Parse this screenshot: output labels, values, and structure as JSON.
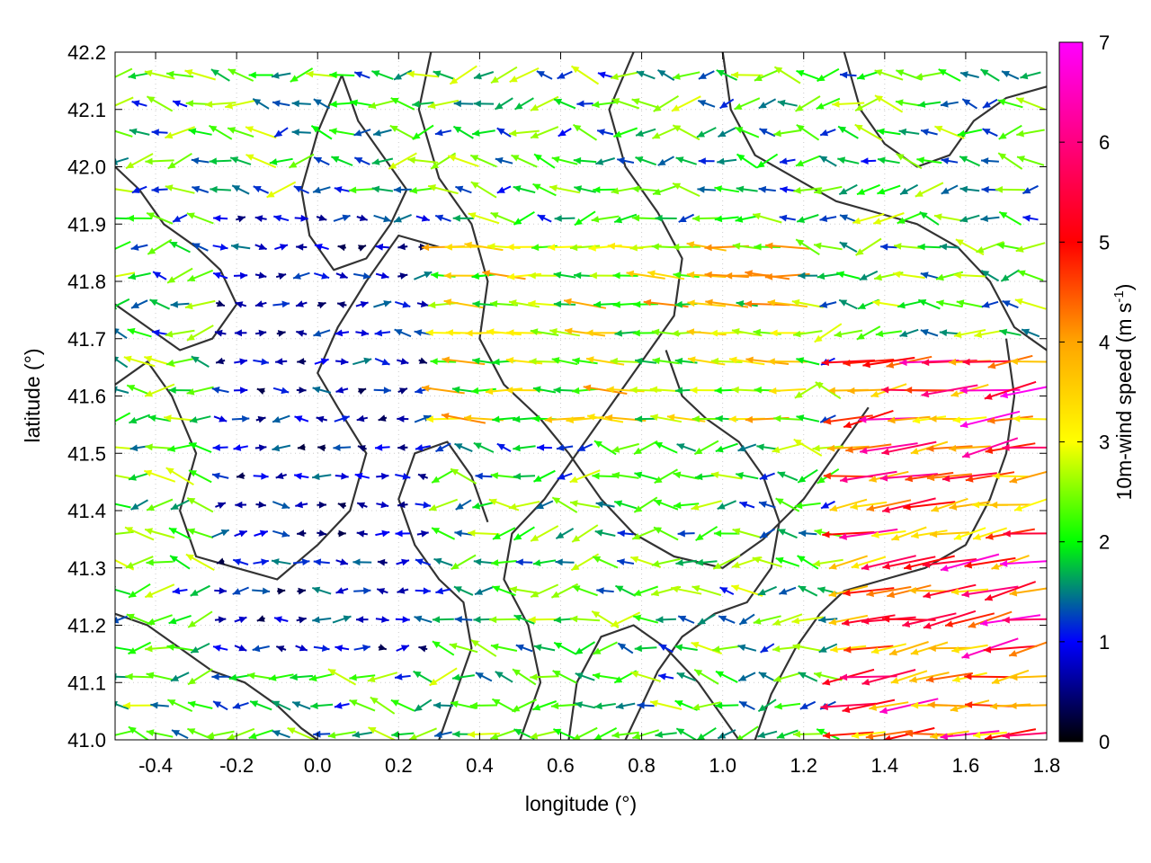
{
  "chart_data": {
    "type": "vector-field",
    "title": "",
    "xlabel": "longitude (°)",
    "ylabel": "latitude (°)",
    "xlim": [
      -0.5,
      1.8
    ],
    "ylim": [
      41.0,
      42.2
    ],
    "x_ticks": [
      "-0.4",
      "-0.2",
      "0.0",
      "0.2",
      "0.4",
      "0.6",
      "0.8",
      "1.0",
      "1.2",
      "1.4",
      "1.6",
      "1.8"
    ],
    "x_tick_values": [
      -0.4,
      -0.2,
      0.0,
      0.2,
      0.4,
      0.6,
      0.8,
      1.0,
      1.2,
      1.4,
      1.6,
      1.8
    ],
    "y_ticks": [
      "41.0",
      "41.1",
      "41.2",
      "41.3",
      "41.4",
      "41.5",
      "41.6",
      "41.7",
      "41.8",
      "41.9",
      "42.0",
      "42.1",
      "42.2"
    ],
    "y_tick_values": [
      41.0,
      41.1,
      41.2,
      41.3,
      41.4,
      41.5,
      41.6,
      41.7,
      41.8,
      41.9,
      42.0,
      42.1,
      42.2
    ],
    "grid": true,
    "colorbar": {
      "label": "10m-wind speed (m s",
      "label_superscript": "-1",
      "label_suffix": ")",
      "range": [
        0,
        7
      ],
      "ticks": [
        "0",
        "1",
        "2",
        "3",
        "4",
        "5",
        "6",
        "7"
      ],
      "tick_values": [
        0,
        1,
        2,
        3,
        4,
        5,
        6,
        7
      ],
      "colors": [
        "#000000",
        "#0000ff",
        "#00ff00",
        "#ffff00",
        "#ffa500",
        "#ff0000",
        "#ff00ff"
      ]
    },
    "contours": {
      "color": "#333333",
      "lines": [
        [
          [
            -0.5,
            41.62
          ],
          [
            -0.42,
            41.66
          ],
          [
            -0.36,
            41.6
          ],
          [
            -0.3,
            41.5
          ],
          [
            -0.34,
            41.4
          ],
          [
            -0.3,
            41.32
          ],
          [
            -0.2,
            41.3
          ],
          [
            -0.1,
            41.28
          ],
          [
            0.0,
            41.34
          ],
          [
            0.08,
            41.4
          ],
          [
            0.12,
            41.5
          ],
          [
            0.05,
            41.58
          ],
          [
            0.0,
            41.64
          ],
          [
            0.05,
            41.72
          ],
          [
            0.12,
            41.8
          ],
          [
            0.2,
            41.88
          ],
          [
            0.3,
            41.86
          ]
        ],
        [
          [
            0.28,
            42.2
          ],
          [
            0.25,
            42.1
          ],
          [
            0.3,
            41.98
          ],
          [
            0.38,
            41.9
          ],
          [
            0.42,
            41.8
          ],
          [
            0.4,
            41.7
          ],
          [
            0.46,
            41.62
          ],
          [
            0.55,
            41.56
          ],
          [
            0.62,
            41.5
          ],
          [
            0.7,
            41.42
          ],
          [
            0.78,
            41.36
          ],
          [
            0.88,
            41.32
          ],
          [
            1.0,
            41.3
          ],
          [
            1.1,
            41.35
          ],
          [
            1.2,
            41.42
          ],
          [
            1.28,
            41.5
          ],
          [
            1.36,
            41.58
          ]
        ],
        [
          [
            0.5,
            41.0
          ],
          [
            0.55,
            41.1
          ],
          [
            0.52,
            41.2
          ],
          [
            0.46,
            41.28
          ],
          [
            0.48,
            41.36
          ],
          [
            0.56,
            41.42
          ],
          [
            0.64,
            41.5
          ],
          [
            0.72,
            41.58
          ],
          [
            0.8,
            41.66
          ],
          [
            0.88,
            41.74
          ],
          [
            0.9,
            41.84
          ],
          [
            0.84,
            41.92
          ],
          [
            0.76,
            42.0
          ],
          [
            0.72,
            42.1
          ],
          [
            0.78,
            42.2
          ]
        ],
        [
          [
            0.62,
            41.0
          ],
          [
            0.64,
            41.1
          ],
          [
            0.7,
            41.18
          ],
          [
            0.78,
            41.2
          ],
          [
            0.86,
            41.16
          ],
          [
            0.94,
            41.1
          ],
          [
            1.0,
            41.04
          ],
          [
            1.04,
            41.0
          ]
        ],
        [
          [
            1.08,
            41.0
          ],
          [
            1.12,
            41.08
          ],
          [
            1.18,
            41.16
          ],
          [
            1.24,
            41.22
          ],
          [
            1.3,
            41.26
          ],
          [
            1.4,
            41.28
          ],
          [
            1.5,
            41.3
          ],
          [
            1.6,
            41.34
          ],
          [
            1.66,
            41.42
          ],
          [
            1.7,
            41.5
          ],
          [
            1.72,
            41.6
          ],
          [
            1.7,
            41.7
          ]
        ],
        [
          [
            1.0,
            42.2
          ],
          [
            1.02,
            42.1
          ],
          [
            1.08,
            42.02
          ],
          [
            1.18,
            41.98
          ],
          [
            1.28,
            41.94
          ],
          [
            1.38,
            41.92
          ],
          [
            1.48,
            41.9
          ],
          [
            1.58,
            41.86
          ],
          [
            1.66,
            41.8
          ],
          [
            1.72,
            41.72
          ],
          [
            1.8,
            41.68
          ]
        ],
        [
          [
            -0.5,
            42.0
          ],
          [
            -0.44,
            41.96
          ],
          [
            -0.38,
            41.9
          ],
          [
            -0.3,
            41.86
          ],
          [
            -0.24,
            41.82
          ],
          [
            -0.2,
            41.76
          ],
          [
            -0.26,
            41.7
          ],
          [
            -0.34,
            41.68
          ],
          [
            -0.42,
            41.72
          ],
          [
            -0.5,
            41.76
          ]
        ],
        [
          [
            -0.5,
            41.22
          ],
          [
            -0.42,
            41.2
          ],
          [
            -0.34,
            41.16
          ],
          [
            -0.26,
            41.12
          ],
          [
            -0.18,
            41.1
          ],
          [
            -0.1,
            41.06
          ],
          [
            -0.04,
            41.02
          ],
          [
            0.0,
            41.0
          ]
        ],
        [
          [
            0.06,
            42.16
          ],
          [
            0.1,
            42.08
          ],
          [
            0.16,
            42.02
          ],
          [
            0.22,
            41.96
          ],
          [
            0.18,
            41.9
          ],
          [
            0.12,
            41.84
          ],
          [
            0.04,
            41.82
          ],
          [
            -0.02,
            41.88
          ],
          [
            -0.04,
            41.96
          ],
          [
            0.0,
            42.06
          ],
          [
            0.06,
            42.16
          ]
        ],
        [
          [
            1.3,
            42.2
          ],
          [
            1.34,
            42.1
          ],
          [
            1.4,
            42.04
          ],
          [
            1.48,
            42.0
          ],
          [
            1.56,
            42.02
          ],
          [
            1.62,
            42.08
          ],
          [
            1.7,
            42.12
          ],
          [
            1.8,
            42.14
          ]
        ],
        [
          [
            0.3,
            41.0
          ],
          [
            0.34,
            41.08
          ],
          [
            0.38,
            41.16
          ],
          [
            0.36,
            41.24
          ],
          [
            0.3,
            41.28
          ],
          [
            0.24,
            41.34
          ],
          [
            0.2,
            41.42
          ],
          [
            0.24,
            41.5
          ],
          [
            0.32,
            41.52
          ],
          [
            0.38,
            41.46
          ],
          [
            0.42,
            41.38
          ]
        ],
        [
          [
            0.76,
            41.0
          ],
          [
            0.8,
            41.06
          ],
          [
            0.84,
            41.12
          ],
          [
            0.9,
            41.18
          ],
          [
            0.98,
            41.22
          ],
          [
            1.06,
            41.24
          ],
          [
            1.12,
            41.3
          ],
          [
            1.14,
            41.38
          ],
          [
            1.1,
            41.46
          ],
          [
            1.04,
            41.52
          ],
          [
            0.96,
            41.56
          ],
          [
            0.9,
            41.6
          ],
          [
            0.86,
            41.68
          ]
        ]
      ]
    },
    "vectors": {
      "grid_step_lon": 0.05,
      "grid_step_lat": 0.05,
      "description_speed_range": [
        0,
        7
      ]
    }
  }
}
